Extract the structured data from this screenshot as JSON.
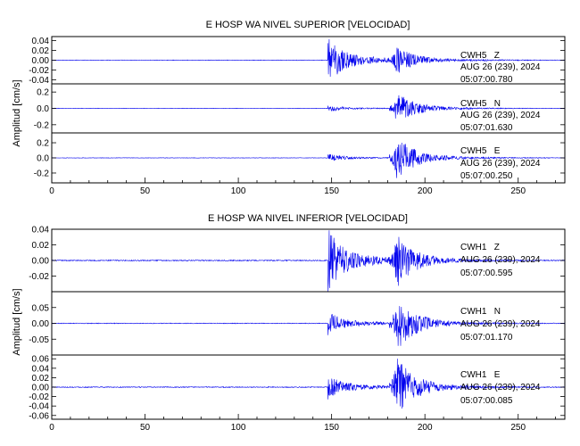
{
  "chart_data": [
    {
      "type": "line",
      "title": "E HOSP WA NIVEL SUPERIOR [VELOCIDAD]",
      "ylabel": "Amplitud [cm/s]",
      "xlim": [
        0,
        275
      ],
      "x_ticks": [
        "0",
        "50",
        "100",
        "150",
        "200",
        "250"
      ],
      "series": [
        {
          "name": "CWH5 Z",
          "channel": "CWH5   Z",
          "date_line": "AUG 26 (239), 2024",
          "time_line": "05:07:00.780",
          "ylim": [
            -0.048,
            0.048
          ],
          "y_ticks": [
            -0.04,
            -0.02,
            0.0,
            0.02,
            0.04
          ],
          "y_tick_labels": [
            "-0.04",
            "-0.02",
            "0.00",
            "0.02",
            "0.04"
          ],
          "onset_s": 148,
          "s_arrival_s": 185,
          "noise_amp": 0.0006,
          "p_peak_amp": 0.045,
          "s_peak_amp": 0.03
        },
        {
          "name": "CWH5 N",
          "channel": "CWH5   N",
          "date_line": "AUG 26 (239), 2024",
          "time_line": "05:07:01.630",
          "ylim": [
            -0.3,
            0.3
          ],
          "y_ticks": [
            -0.2,
            0.0,
            0.2
          ],
          "y_tick_labels": [
            "-0.2",
            "0.0",
            "0.2"
          ],
          "onset_s": 148,
          "s_arrival_s": 185,
          "noise_amp": 0.003,
          "p_peak_amp": 0.04,
          "s_peak_amp": 0.2
        },
        {
          "name": "CWH5 E",
          "channel": "CWH5   E",
          "date_line": "AUG 26 (239), 2024",
          "time_line": "05:07:00.250",
          "ylim": [
            -0.33,
            0.33
          ],
          "y_ticks": [
            -0.2,
            0.0,
            0.2
          ],
          "y_tick_labels": [
            "-0.2",
            "0.0",
            "0.2"
          ],
          "onset_s": 148,
          "s_arrival_s": 185,
          "noise_amp": 0.003,
          "p_peak_amp": 0.05,
          "s_peak_amp": 0.3
        }
      ]
    },
    {
      "type": "line",
      "title": "E HOSP WA NIVEL INFERIOR [VELOCIDAD]",
      "ylabel": "Amplitud [cm/s]",
      "xlim": [
        0,
        275
      ],
      "x_ticks": [
        "0",
        "50",
        "100",
        "150",
        "200",
        "250"
      ],
      "series": [
        {
          "name": "CWH1 Z",
          "channel": "CWH1   Z",
          "date_line": "AUG 26 (239), 2024",
          "time_line": "05:07:00.595",
          "ylim": [
            -0.04,
            0.04
          ],
          "y_ticks": [
            -0.02,
            0.0,
            0.02,
            0.04
          ],
          "y_tick_labels": [
            "-0.02",
            "0.00",
            "0.02",
            "0.04"
          ],
          "onset_s": 148,
          "s_arrival_s": 185,
          "noise_amp": 0.0007,
          "p_peak_amp": 0.038,
          "s_peak_amp": 0.035
        },
        {
          "name": "CWH1 N",
          "channel": "CWH1   N",
          "date_line": "AUG 26 (239), 2024",
          "time_line": "05:07:01.170",
          "ylim": [
            -0.1,
            0.1
          ],
          "y_ticks": [
            -0.05,
            0.0,
            0.05
          ],
          "y_tick_labels": [
            "-0.05",
            "0.00",
            "0.05"
          ],
          "onset_s": 148,
          "s_arrival_s": 185,
          "noise_amp": 0.0012,
          "p_peak_amp": 0.035,
          "s_peak_amp": 0.09
        },
        {
          "name": "CWH1 E",
          "channel": "CWH1   E",
          "date_line": "AUG 26 (239), 2024",
          "time_line": "05:07:00.085",
          "ylim": [
            -0.068,
            0.068
          ],
          "y_ticks": [
            -0.06,
            -0.04,
            -0.02,
            0.0,
            0.02,
            0.04,
            0.06
          ],
          "y_tick_labels": [
            "-0.06",
            "-0.04",
            "-0.02",
            "0.00",
            "0.02",
            "0.04",
            "0.06"
          ],
          "onset_s": 148,
          "s_arrival_s": 185,
          "noise_amp": 0.001,
          "p_peak_amp": 0.025,
          "s_peak_amp": 0.065
        }
      ]
    }
  ]
}
